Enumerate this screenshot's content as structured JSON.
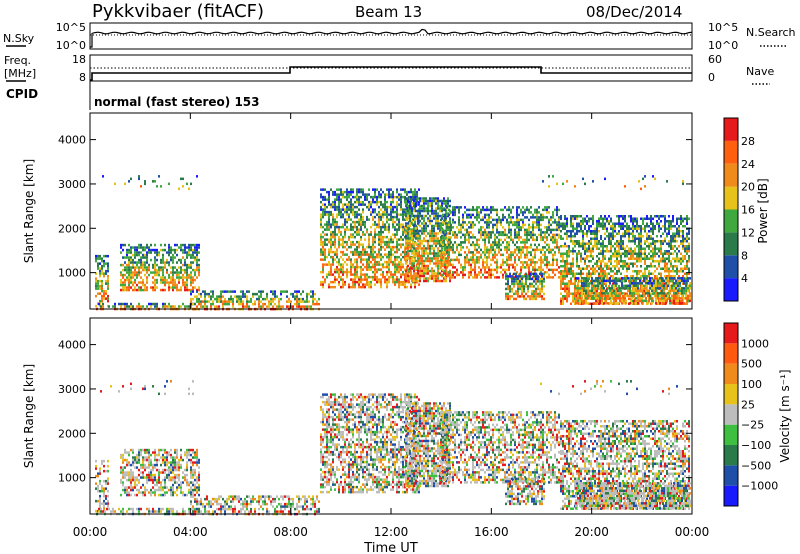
{
  "header": {
    "station": "Pykkvibaer (fitACF)",
    "beam": "Beam 13",
    "date": "08/Dec/2014"
  },
  "noise_panel": {
    "left_label": "N.Sky",
    "right_label": "N.Search",
    "left_ticks": [
      "10^5",
      "10^0"
    ],
    "right_ticks": [
      "10^5",
      "10^0"
    ]
  },
  "freq_panel": {
    "left_label_line1": "Freq.",
    "left_label_line2": "[MHz]",
    "left_ticks": [
      "18",
      "8"
    ],
    "right_label": "Nave",
    "right_ticks": [
      "60",
      "0"
    ]
  },
  "cpid_panel": {
    "label": "CPID",
    "text": "normal (fast stereo) 153"
  },
  "chart_data": [
    {
      "type": "heatmap",
      "quantity": "Power",
      "ylabel": "Slant Range [km]",
      "yticks": [
        1000,
        2000,
        3000,
        4000
      ],
      "ylim": [
        180,
        4600
      ],
      "x_tick_labels": [
        "00:00",
        "04:00",
        "08:00",
        "12:00",
        "16:00",
        "20:00",
        "00:00"
      ],
      "colorbar": {
        "label": "Power [dB]",
        "tick_labels": [
          "4",
          "8",
          "12",
          "16",
          "20",
          "24",
          "28"
        ],
        "colors": [
          "#1a1aff",
          "#1f4fa8",
          "#2a7a4a",
          "#3fa83f",
          "#e6c21a",
          "#f08a1a",
          "#ff6010",
          "#e61a1a"
        ]
      }
    },
    {
      "type": "heatmap",
      "quantity": "Velocity",
      "ylabel": "Slant Range [km]",
      "yticks": [
        1000,
        2000,
        3000,
        4000
      ],
      "ylim": [
        180,
        4600
      ],
      "x_tick_labels": [
        "00:00",
        "04:00",
        "08:00",
        "12:00",
        "16:00",
        "20:00",
        "00:00"
      ],
      "xlabel": "Time UT",
      "colorbar": {
        "label": "Velocity [m s⁻¹]",
        "tick_labels": [
          "1000",
          "500",
          "100",
          "25",
          "−25",
          "−100",
          "−500",
          "−1000"
        ],
        "colors": [
          "#1a1aff",
          "#1f4fa8",
          "#2a7a4a",
          "#3fbf3f",
          "#bdbdbd",
          "#e6c21a",
          "#f08a1a",
          "#ff5a10",
          "#e61a1a"
        ]
      }
    }
  ]
}
